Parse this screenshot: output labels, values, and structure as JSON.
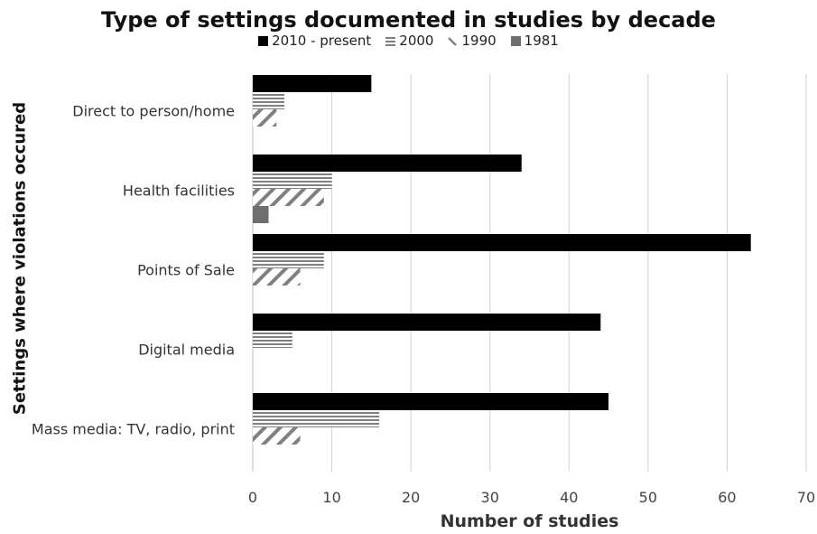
{
  "chart_data": {
    "type": "bar",
    "orientation": "horizontal",
    "title": "Type of settings documented in studies by decade",
    "xlabel": "Number of studies",
    "ylabel": "Settings where violations occured",
    "categories": [
      "Direct to person/home",
      "Health facilities",
      "Points of Sale",
      "Digital media",
      "Mass media: TV, radio, print"
    ],
    "series": [
      {
        "name": "2010 - present",
        "values": [
          15,
          34,
          63,
          44,
          45
        ],
        "color": "#000000",
        "pattern": "solid"
      },
      {
        "name": "2000",
        "values": [
          4,
          10,
          9,
          5,
          16
        ],
        "color": "#808080",
        "pattern": "horizontal-lines"
      },
      {
        "name": "1990",
        "values": [
          3,
          9,
          6,
          0,
          6
        ],
        "color": "#808080",
        "pattern": "diagonal-lines"
      },
      {
        "name": "1981",
        "values": [
          0,
          2,
          0,
          0,
          0
        ],
        "color": "#6e6e6e",
        "pattern": "solid"
      }
    ],
    "xlim": [
      0,
      70
    ],
    "xticks": [
      0,
      10,
      20,
      30,
      40,
      50,
      60,
      70
    ],
    "grid": "vertical",
    "legend_position": "top"
  }
}
